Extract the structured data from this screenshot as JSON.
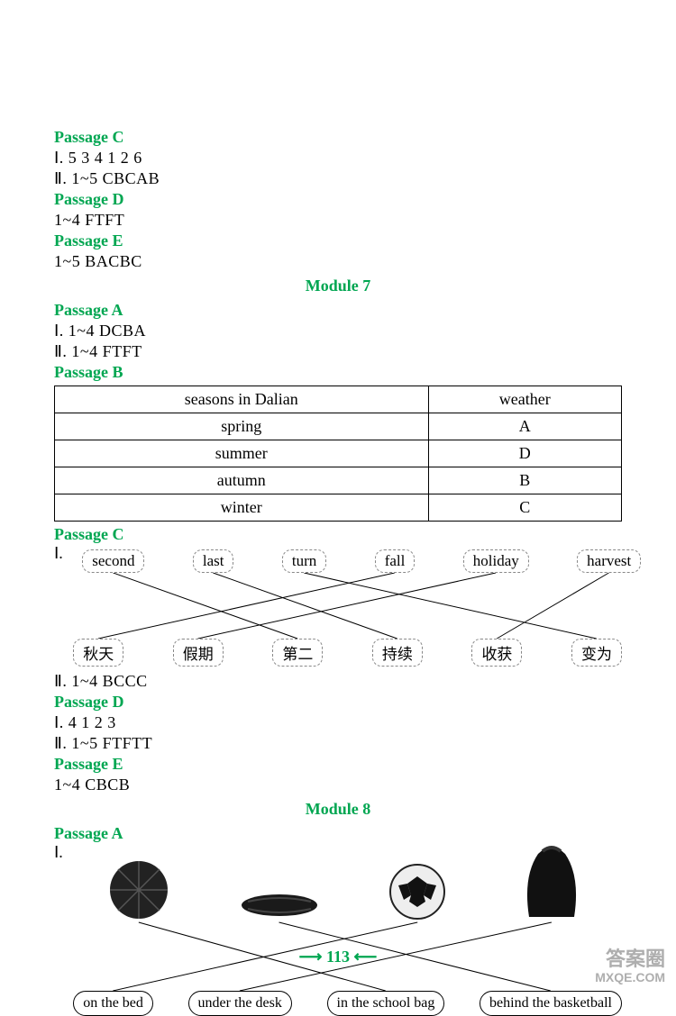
{
  "top": {
    "pC_label": "Passage C",
    "pC_l1": "Ⅰ. 5 3 4 1 2 6",
    "pC_l2": "Ⅱ. 1~5   CBCAB",
    "pD_label": "Passage D",
    "pD_l1": "1~4   FTFT",
    "pE_label": "Passage E",
    "pE_l1": "1~5   BACBC"
  },
  "module7": {
    "title": "Module 7",
    "pA_label": "Passage A",
    "pA_l1": "Ⅰ. 1~4 DCBA",
    "pA_l2": "Ⅱ. 1~4 FTFT",
    "pB_label": "Passage B",
    "table": {
      "h1": "seasons in Dalian",
      "h2": "weather",
      "r1c1": "spring",
      "r1c2": "A",
      "r2c1": "summer",
      "r2c2": "D",
      "r3c1": "autumn",
      "r3c2": "B",
      "r4c1": "winter",
      "r4c2": "C"
    },
    "pC_label": "Passage C",
    "pC_roman": "Ⅰ.",
    "match_top": [
      "second",
      "last",
      "turn",
      "fall",
      "holiday",
      "harvest"
    ],
    "match_bottom": [
      "秋天",
      "假期",
      "第二",
      "持续",
      "收获",
      "变为"
    ],
    "match_lines": [
      [
        0,
        2
      ],
      [
        1,
        3
      ],
      [
        2,
        5
      ],
      [
        3,
        0
      ],
      [
        4,
        1
      ],
      [
        5,
        4
      ]
    ],
    "pC_l2": "Ⅱ. 1~4   BCCC",
    "pD_label": "Passage D",
    "pD_l1": "Ⅰ. 4 1 2 3",
    "pD_l2": "Ⅱ. 1~5   FTFTT",
    "pE_label": "Passage E",
    "pE_l1": "1~4   CBCB"
  },
  "module8": {
    "title": "Module 8",
    "pA_label": "Passage A",
    "pA_roman": "Ⅰ.",
    "images": [
      "basketball",
      "scarf",
      "football",
      "bag"
    ],
    "labels": [
      "on the bed",
      "under the desk",
      "in the school bag",
      "behind the basketball"
    ],
    "img_lines": [
      [
        0,
        2
      ],
      [
        1,
        3
      ],
      [
        2,
        0
      ],
      [
        3,
        1
      ]
    ]
  },
  "footer": {
    "page": "113"
  },
  "watermark": {
    "l1": "答案圈",
    "l2": "MXQE.COM"
  },
  "style": {
    "green": "#00a651",
    "line_color": "#000000"
  }
}
